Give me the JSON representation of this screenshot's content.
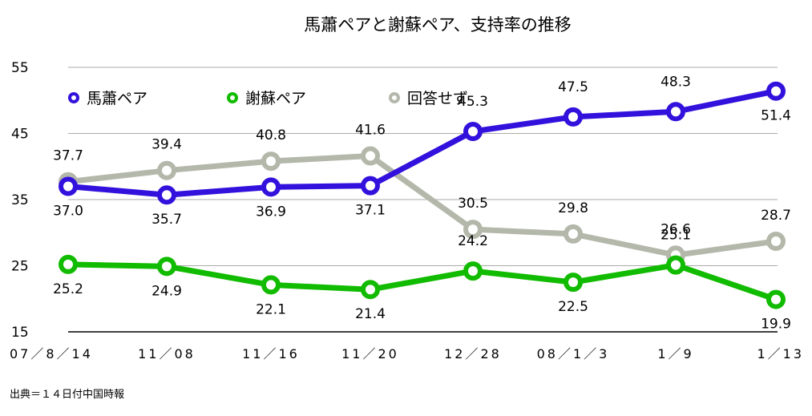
{
  "chart_data": {
    "type": "line",
    "title": "馬蕭ペアと謝蘇ペア、支持率の推移",
    "xlabel": "",
    "ylabel": "",
    "categories": [
      "07/8/14",
      "11/08",
      "11/16",
      "11/20",
      "12/28",
      "08/1/3",
      "1/9",
      "1/13"
    ],
    "x_tick_labels": [
      "07／8／14",
      "11／08",
      "11／16",
      "11／20",
      "12／28",
      "08／1／3",
      "1／9",
      "1／13"
    ],
    "ylim": [
      15,
      55
    ],
    "yticks": [
      "15",
      "25",
      "35",
      "45",
      "55"
    ],
    "grid": true,
    "legend_position": "top-left",
    "series": [
      {
        "name": "馬蕭ペア",
        "color": "#3311dd",
        "values": [
          37.0,
          35.7,
          36.9,
          37.1,
          45.3,
          47.5,
          48.3,
          51.4
        ],
        "labels": [
          "37.0",
          "35.7",
          "36.9",
          "37.1",
          "45.3",
          "47.5",
          "48.3",
          "51.4"
        ]
      },
      {
        "name": "謝蘇ペア",
        "color": "#11bb00",
        "values": [
          25.2,
          24.9,
          22.1,
          21.4,
          24.2,
          22.5,
          25.1,
          19.9
        ],
        "labels": [
          "25.2",
          "24.9",
          "22.1",
          "21.4",
          "24.2",
          "22.5",
          "25.1",
          "19.9"
        ]
      },
      {
        "name": "回答せず",
        "color": "#b3b8aa",
        "values": [
          37.7,
          39.4,
          40.8,
          41.6,
          30.5,
          29.8,
          26.6,
          28.7
        ],
        "labels": [
          "37.7",
          "39.4",
          "40.8",
          "41.6",
          "30.5",
          "29.8",
          "26.6",
          "28.7"
        ]
      }
    ]
  },
  "source": "出典＝１４日付中国時報"
}
